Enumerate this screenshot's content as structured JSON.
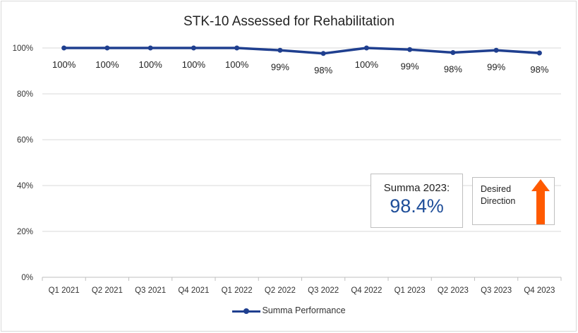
{
  "chart_data": {
    "type": "line",
    "title": "STK-10 Assessed for Rehabilitation",
    "categories": [
      "Q1 2021",
      "Q2 2021",
      "Q3 2021",
      "Q4 2021",
      "Q1 2022",
      "Q2 2022",
      "Q3 2022",
      "Q4 2022",
      "Q1 2023",
      "Q2 2023",
      "Q3 2023",
      "Q4 2023"
    ],
    "series": [
      {
        "name": "Summa Performance",
        "values": [
          100,
          100,
          100,
          100,
          100,
          99,
          97.6,
          100,
          99.3,
          98,
          99,
          97.8
        ],
        "data_labels": [
          "100%",
          "100%",
          "100%",
          "100%",
          "100%",
          "99%",
          "98%",
          "100%",
          "99%",
          "98%",
          "99%",
          "98%"
        ],
        "color": "#1f3f8f"
      }
    ],
    "ylim": [
      0,
      100
    ],
    "yticks": [
      "0%",
      "20%",
      "40%",
      "60%",
      "80%",
      "100%"
    ],
    "ytick_values": [
      0,
      20,
      40,
      60,
      80,
      100
    ],
    "grid": true,
    "legend": "bottom"
  },
  "summary_box": {
    "label": "Summa 2023:",
    "value": "98.4%",
    "value_color": "#1f4e99"
  },
  "desired_direction": {
    "text": "Desired Direction",
    "arrow_color": "#ff5a00",
    "icon": "arrow-up-icon"
  }
}
